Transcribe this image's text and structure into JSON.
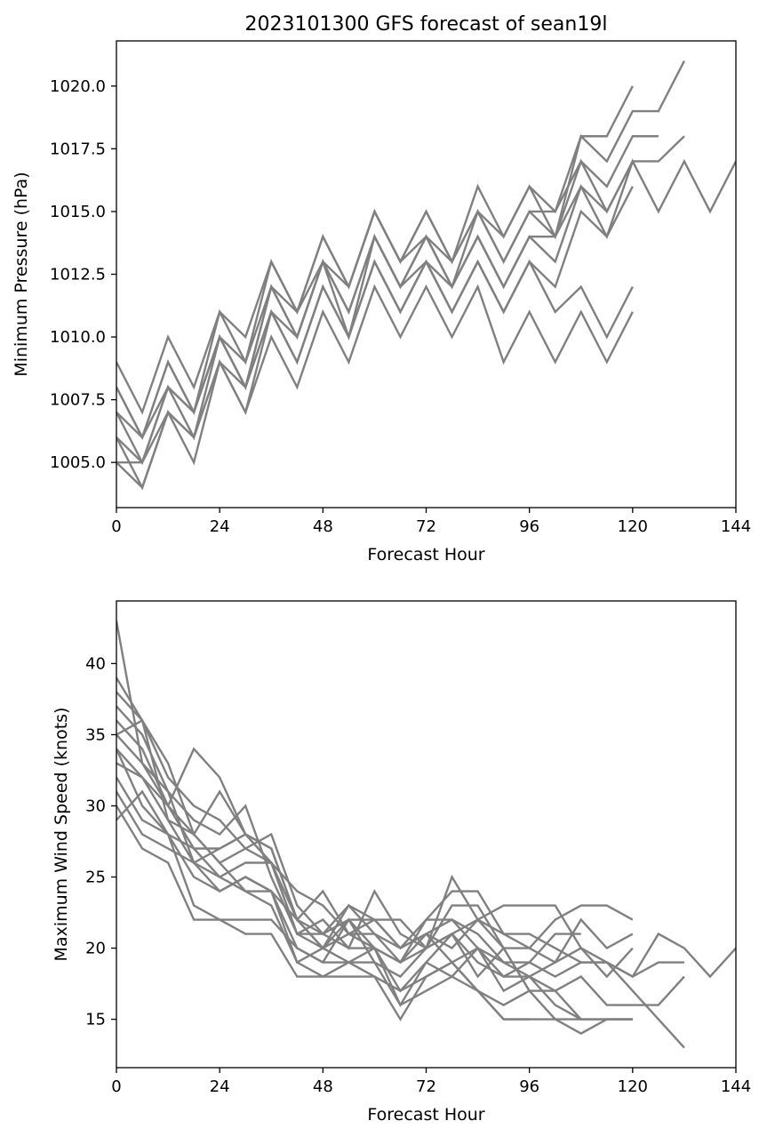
{
  "colors": {
    "line": "#808080",
    "frame": "#000000",
    "background": "#ffffff"
  },
  "chart_data": [
    {
      "type": "line",
      "title": "2023101300 GFS forecast of sean19l",
      "xlabel": "Forecast Hour",
      "ylabel": "Minimum Pressure (hPa)",
      "xlim": [
        0,
        144
      ],
      "ylim": [
        1003.2,
        1021.8
      ],
      "xticks": [
        0,
        24,
        48,
        72,
        96,
        120,
        144
      ],
      "yticks": [
        1005.0,
        1007.5,
        1010.0,
        1012.5,
        1015.0,
        1017.5,
        1020.0
      ],
      "ytick_labels": [
        "1005.0",
        "1007.5",
        "1010.0",
        "1012.5",
        "1015.0",
        "1017.5",
        "1020.0"
      ],
      "grid": false,
      "series": [
        {
          "x": [
            0,
            6,
            12,
            18,
            24,
            30,
            36,
            42,
            48,
            54,
            60,
            66,
            72,
            78,
            84,
            90,
            96,
            102,
            108,
            114,
            120
          ],
          "y": [
            1009,
            1007,
            1010,
            1008,
            1011,
            1010,
            1013,
            1011,
            1014,
            1012,
            1015,
            1013,
            1015,
            1013,
            1016,
            1014,
            1016,
            1015,
            1018,
            1018,
            1020
          ]
        },
        {
          "x": [
            0,
            6,
            12,
            18,
            24,
            30,
            36,
            42,
            48,
            54,
            60,
            66,
            72,
            78,
            84,
            90,
            96,
            102,
            108,
            114,
            120,
            126,
            132
          ],
          "y": [
            1008,
            1006,
            1009,
            1007,
            1011,
            1009,
            1013,
            1011,
            1014,
            1012,
            1015,
            1013,
            1015,
            1013,
            1015,
            1014,
            1016,
            1014,
            1018,
            1017,
            1019,
            1019,
            1021
          ]
        },
        {
          "x": [
            0,
            6,
            12,
            18,
            24,
            30,
            36,
            42,
            48,
            54,
            60,
            66,
            72,
            78,
            84,
            90,
            96,
            102,
            108,
            114,
            120,
            126
          ],
          "y": [
            1008,
            1006,
            1009,
            1007,
            1010,
            1009,
            1012,
            1011,
            1013,
            1012,
            1015,
            1013,
            1014,
            1013,
            1015,
            1013,
            1015,
            1015,
            1017,
            1016,
            1018,
            1018
          ]
        },
        {
          "x": [
            0,
            6,
            12,
            18,
            24,
            30,
            36,
            42,
            48,
            54,
            60,
            66,
            72,
            78,
            84,
            90,
            96,
            102,
            108,
            114,
            120,
            126,
            132
          ],
          "y": [
            1007,
            1006,
            1008,
            1007,
            1010,
            1008,
            1012,
            1010,
            1013,
            1011,
            1014,
            1012,
            1014,
            1012,
            1015,
            1013,
            1015,
            1014,
            1017,
            1015,
            1017,
            1017,
            1018
          ]
        },
        {
          "x": [
            0,
            6,
            12,
            18,
            24,
            30,
            36,
            42,
            48,
            54,
            60,
            66,
            72,
            78,
            84,
            90,
            96,
            102,
            108,
            114,
            120,
            126,
            132,
            138,
            144
          ],
          "y": [
            1007,
            1005,
            1008,
            1007,
            1010,
            1008,
            1012,
            1010,
            1013,
            1011,
            1014,
            1012,
            1014,
            1012,
            1014,
            1012,
            1014,
            1014,
            1016,
            1014,
            1017,
            1015,
            1017,
            1015,
            1017
          ]
        },
        {
          "x": [
            0,
            6,
            12,
            18,
            24,
            30,
            36,
            42,
            48,
            54,
            60,
            66,
            72,
            78,
            84,
            90,
            96,
            102,
            108,
            114,
            120
          ],
          "y": [
            1006,
            1005,
            1008,
            1006,
            1010,
            1008,
            1011,
            1010,
            1013,
            1010,
            1014,
            1012,
            1013,
            1012,
            1014,
            1012,
            1014,
            1013,
            1016,
            1015,
            1017
          ]
        },
        {
          "x": [
            0,
            6,
            12,
            18,
            24,
            30,
            36,
            42,
            48,
            54,
            60,
            66,
            72,
            78,
            84,
            90,
            96,
            102,
            108,
            114,
            120
          ],
          "y": [
            1006,
            1004,
            1007,
            1006,
            1009,
            1008,
            1011,
            1009,
            1012,
            1010,
            1013,
            1011,
            1013,
            1011,
            1013,
            1011,
            1013,
            1012,
            1015,
            1014,
            1016
          ]
        },
        {
          "x": [
            0,
            6,
            12,
            18,
            24,
            30,
            36,
            42,
            48,
            54,
            60,
            66,
            72,
            78,
            84,
            90,
            96,
            102,
            108,
            114,
            120
          ],
          "y": [
            1005,
            1005,
            1007,
            1006,
            1009,
            1007,
            1011,
            1009,
            1012,
            1010,
            1013,
            1011,
            1013,
            1011,
            1013,
            1011,
            1013,
            1011,
            1012,
            1010,
            1012
          ]
        },
        {
          "x": [
            0,
            6,
            12,
            18,
            24,
            30,
            36,
            42,
            48,
            54,
            60,
            66,
            72,
            78,
            84,
            90,
            96,
            102,
            108,
            114,
            120
          ],
          "y": [
            1005,
            1004,
            1007,
            1005,
            1009,
            1007,
            1010,
            1008,
            1011,
            1009,
            1012,
            1010,
            1012,
            1010,
            1012,
            1009,
            1011,
            1009,
            1011,
            1009,
            1011
          ]
        }
      ]
    },
    {
      "type": "line",
      "title": "",
      "xlabel": "Forecast Hour",
      "ylabel": "Maximum Wind Speed (knots)",
      "xlim": [
        0,
        144
      ],
      "ylim": [
        11.6,
        44.4
      ],
      "xticks": [
        0,
        24,
        48,
        72,
        96,
        120,
        144
      ],
      "yticks": [
        15,
        20,
        25,
        30,
        35,
        40
      ],
      "ytick_labels": [
        "15",
        "20",
        "25",
        "30",
        "35",
        "40"
      ],
      "grid": false,
      "series": [
        {
          "x": [
            0,
            6,
            12,
            18,
            24,
            30,
            36,
            42,
            48,
            54,
            60,
            66,
            72,
            78,
            84,
            90,
            96,
            102,
            108,
            114,
            120
          ],
          "y": [
            43,
            33,
            30,
            34,
            32,
            28,
            27,
            22,
            21,
            23,
            22,
            20,
            21,
            20,
            22,
            21,
            20,
            22,
            23,
            23,
            22
          ]
        },
        {
          "x": [
            0,
            6,
            12,
            18,
            24,
            30,
            36,
            42,
            48,
            54,
            60,
            66,
            72,
            78,
            84,
            90,
            96,
            102,
            108,
            114,
            120
          ],
          "y": [
            39,
            36,
            33,
            28,
            31,
            28,
            26,
            24,
            23,
            21,
            22,
            22,
            20,
            23,
            23,
            20,
            20,
            19,
            22,
            20,
            21
          ]
        },
        {
          "x": [
            0,
            6,
            12,
            18,
            24,
            30,
            36,
            42,
            48,
            54,
            60,
            66,
            72,
            78,
            84,
            90,
            96,
            102,
            108,
            114,
            120,
            126,
            132,
            138,
            144
          ],
          "y": [
            38,
            36,
            32,
            30,
            29,
            27,
            26,
            22,
            20,
            21,
            20,
            19,
            22,
            22,
            20,
            19,
            18,
            19,
            20,
            19,
            18,
            21,
            20,
            18,
            20
          ]
        },
        {
          "x": [
            0,
            6,
            12,
            18,
            24,
            30,
            36,
            42,
            48,
            54,
            60,
            66,
            72,
            78,
            84,
            90,
            96,
            102,
            108,
            114,
            120
          ],
          "y": [
            37,
            35,
            31,
            29,
            28,
            30,
            25,
            21,
            22,
            20,
            24,
            21,
            20,
            25,
            22,
            23,
            23,
            23,
            20,
            18,
            20
          ]
        },
        {
          "x": [
            0,
            6,
            12,
            18,
            24,
            30,
            36,
            42,
            48,
            54,
            60,
            66,
            72,
            78,
            84,
            90,
            96,
            102,
            108,
            114,
            120,
            126,
            132
          ],
          "y": [
            36,
            34,
            30,
            27,
            27,
            28,
            27,
            22,
            24,
            21,
            21,
            20,
            22,
            24,
            24,
            21,
            21,
            20,
            19,
            19,
            18,
            19,
            19
          ]
        },
        {
          "x": [
            0,
            6,
            12,
            18,
            24,
            30,
            36,
            42,
            48,
            54,
            60,
            66,
            72,
            78,
            84,
            90,
            96,
            102,
            108
          ],
          "y": [
            35,
            36,
            29,
            28,
            26,
            27,
            28,
            23,
            21,
            22,
            22,
            20,
            21,
            22,
            21,
            19,
            19,
            21,
            21
          ]
        },
        {
          "x": [
            0,
            6,
            12,
            18,
            24,
            30,
            36,
            42,
            48,
            54,
            60,
            66,
            72,
            78,
            84,
            90,
            96,
            102,
            108,
            114,
            120,
            126,
            132
          ],
          "y": [
            35,
            33,
            31,
            26,
            27,
            28,
            26,
            21,
            20,
            23,
            21,
            19,
            20,
            21,
            22,
            20,
            17,
            17,
            18,
            16,
            16,
            16,
            18
          ]
        },
        {
          "x": [
            0,
            6,
            12,
            18,
            24,
            30,
            36,
            42,
            48,
            54,
            60,
            66,
            72,
            78,
            84,
            90,
            96,
            102,
            108,
            114,
            120,
            126,
            132
          ],
          "y": [
            34,
            30,
            28,
            27,
            25,
            26,
            26,
            21,
            21,
            20,
            20,
            19,
            21,
            19,
            20,
            18,
            19,
            18,
            19,
            19,
            17,
            15,
            13
          ]
        },
        {
          "x": [
            0,
            6,
            12,
            18,
            24,
            30,
            36,
            42,
            48,
            54,
            60,
            66,
            72,
            78,
            84,
            90,
            96
          ],
          "y": [
            34,
            32,
            29,
            26,
            24,
            25,
            24,
            22,
            20,
            22,
            19,
            18,
            20,
            21,
            18,
            20,
            17
          ]
        },
        {
          "x": [
            0,
            6,
            12,
            18,
            24,
            30,
            36,
            42,
            48,
            54,
            60,
            66,
            72,
            78,
            84,
            90,
            96,
            102,
            108,
            114,
            120
          ],
          "y": [
            33,
            32,
            30,
            28,
            26,
            24,
            24,
            20,
            19,
            22,
            20,
            17,
            19,
            21,
            19,
            18,
            18,
            17,
            15,
            15,
            15
          ]
        },
        {
          "x": [
            0,
            6,
            12,
            18,
            24,
            30,
            36,
            42,
            48,
            54,
            60,
            66,
            72,
            78,
            84,
            90,
            96,
            102,
            108
          ],
          "y": [
            32,
            29,
            28,
            25,
            24,
            25,
            24,
            19,
            20,
            19,
            20,
            16,
            19,
            18,
            20,
            17,
            18,
            16,
            15
          ]
        },
        {
          "x": [
            0,
            6,
            12,
            18,
            24,
            30,
            36,
            42,
            48,
            54,
            60,
            66,
            72,
            78,
            84,
            90,
            96,
            102,
            108,
            114,
            120
          ],
          "y": [
            31,
            28,
            27,
            26,
            25,
            24,
            23,
            19,
            18,
            19,
            18,
            17,
            18,
            19,
            17,
            16,
            17,
            15,
            14,
            15,
            15
          ]
        },
        {
          "x": [
            0,
            6,
            12,
            18,
            24,
            30,
            36,
            42,
            48,
            54,
            60,
            66,
            72,
            78,
            84,
            90,
            96,
            102,
            108,
            114,
            120
          ],
          "y": [
            30,
            27,
            26,
            22,
            22,
            21,
            21,
            18,
            18,
            18,
            18,
            15,
            18,
            19,
            17,
            15,
            15,
            15,
            15,
            15,
            15
          ]
        },
        {
          "x": [
            0,
            6,
            12,
            18,
            24,
            30,
            36,
            42,
            48,
            54,
            60,
            66,
            72,
            78,
            84,
            90,
            96
          ],
          "y": [
            29,
            31,
            28,
            23,
            22,
            22,
            22,
            20,
            19,
            19,
            19,
            16,
            17,
            18,
            17,
            15,
            15
          ]
        }
      ]
    }
  ]
}
